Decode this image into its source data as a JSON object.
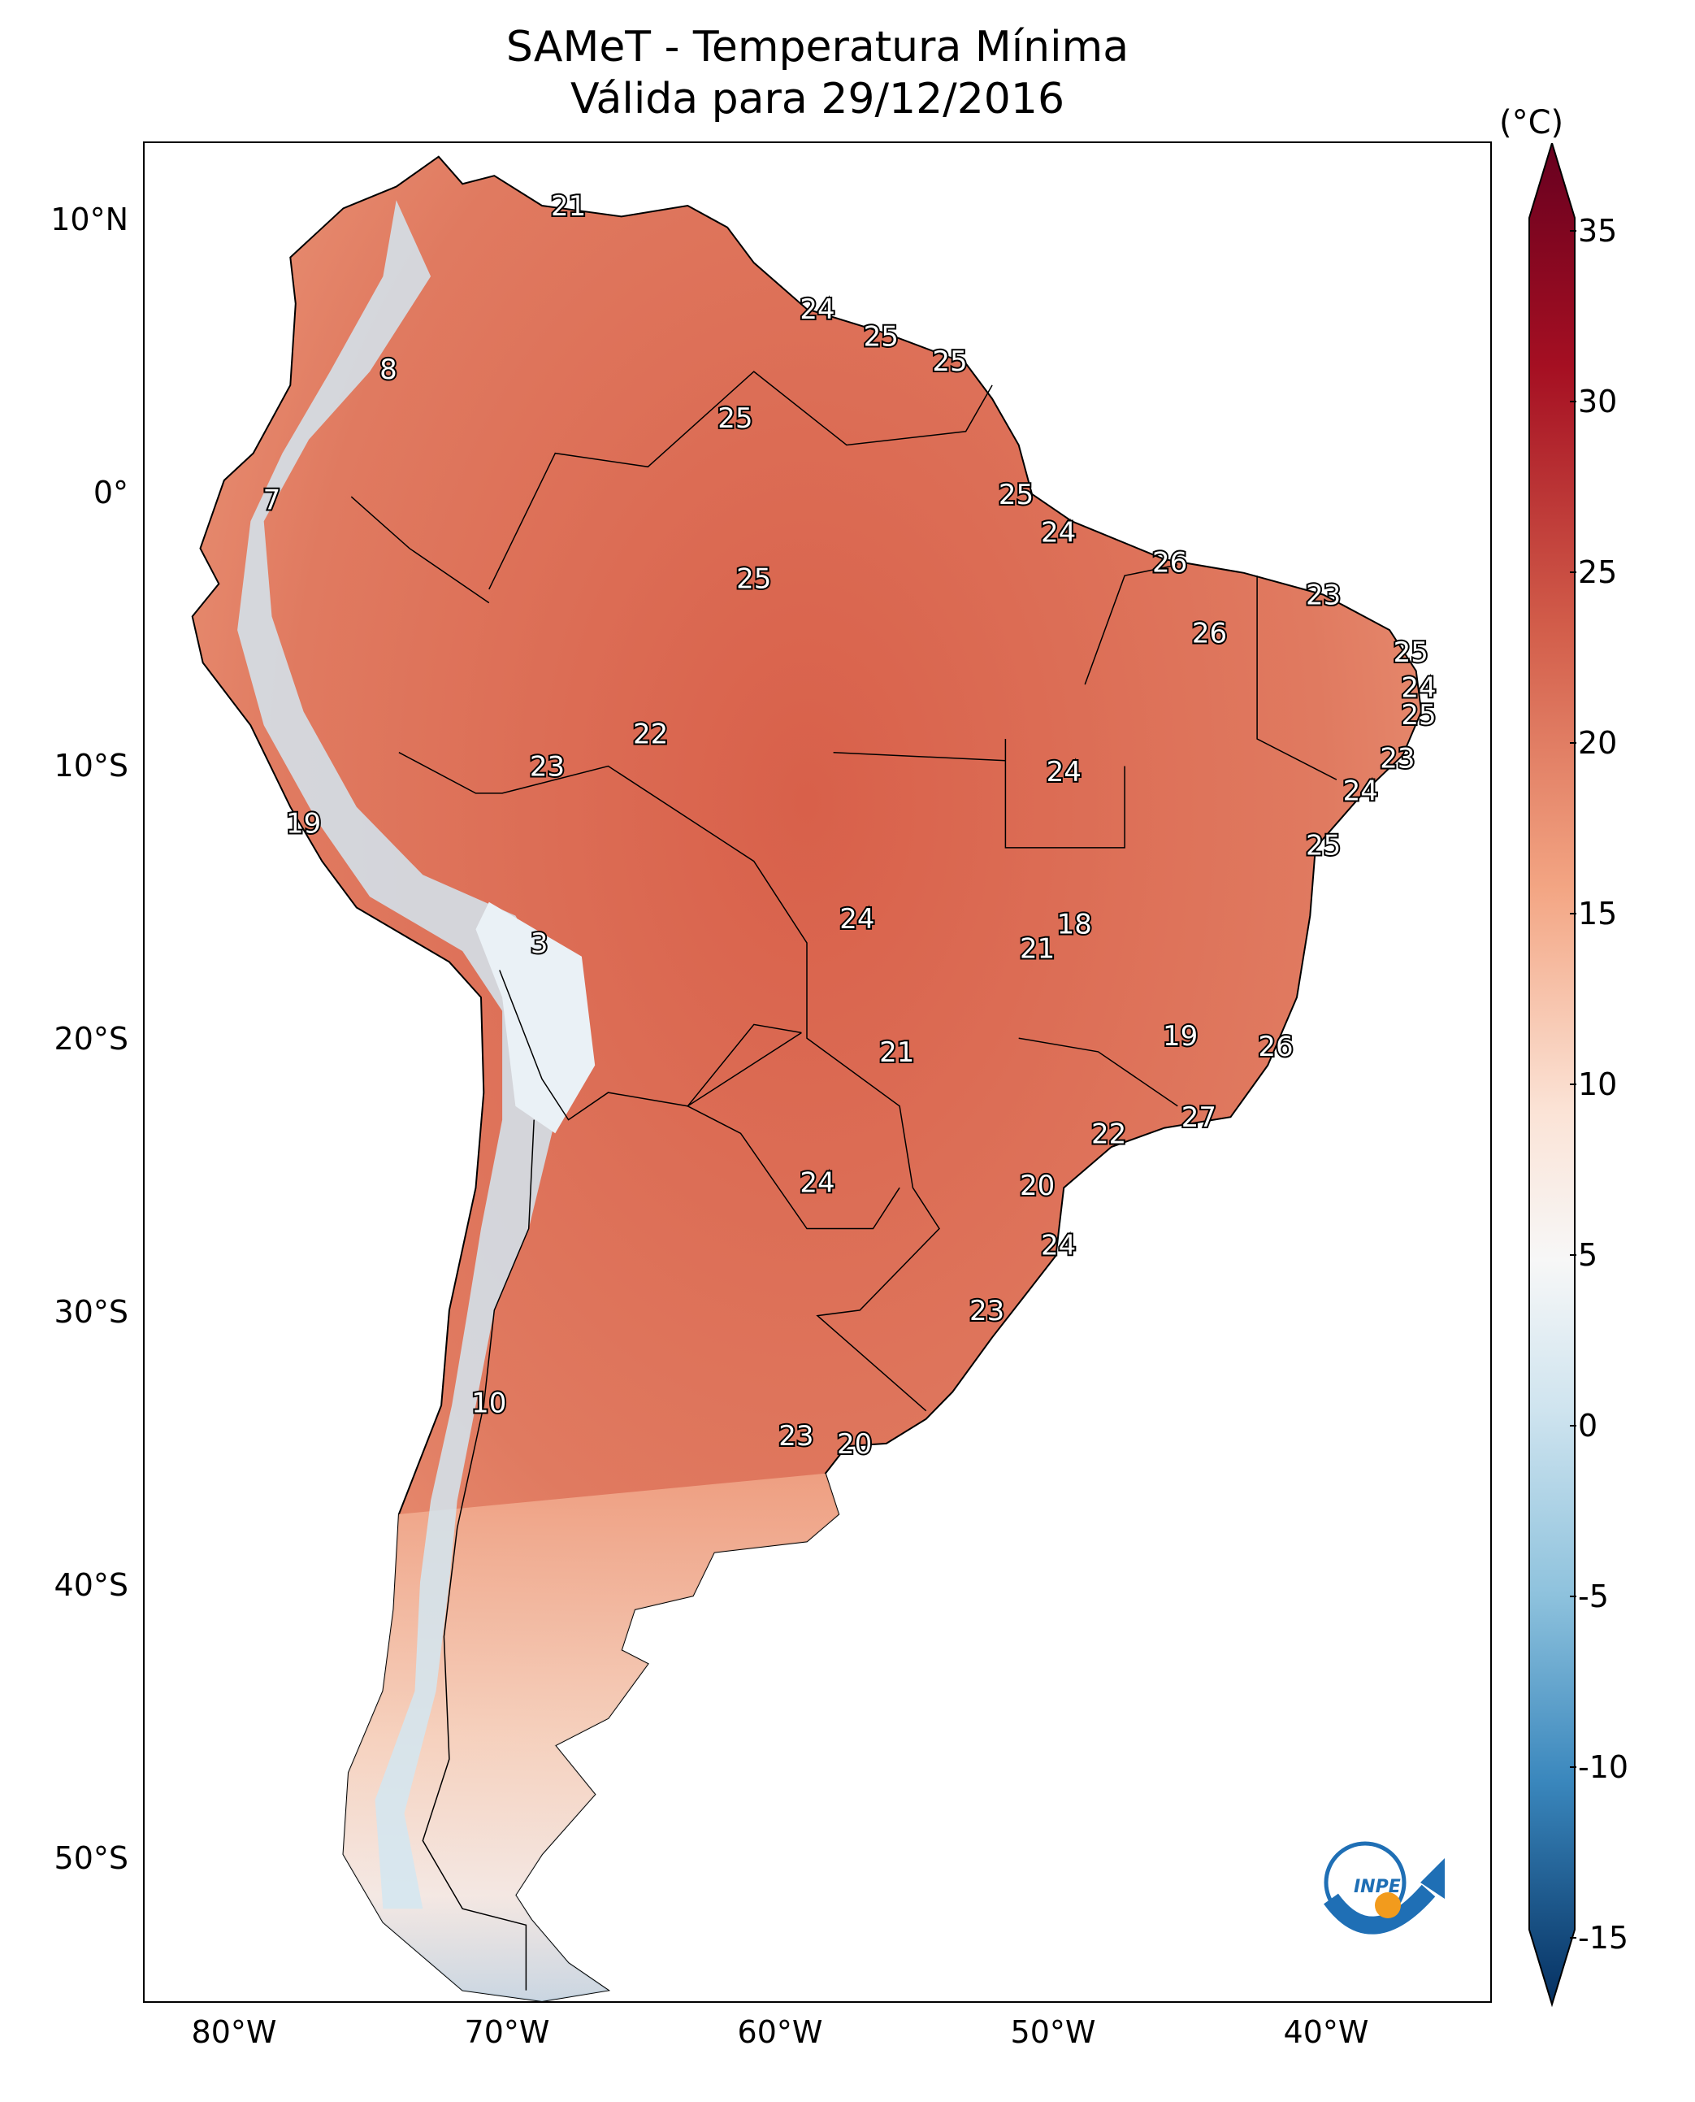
{
  "title_line1": "SAMeT - Temperatura Mínima",
  "title_line2": "Válida para 29/12/2016",
  "colorbar": {
    "unit": "(°C)",
    "ticks": [
      "35",
      "30",
      "25",
      "20",
      "15",
      "10",
      "5",
      "0",
      "-5",
      "-10",
      "-15"
    ],
    "colors": [
      "#6b0019",
      "#b2182b",
      "#d6604d",
      "#f4a582",
      "#fddbc7",
      "#f7f7f7",
      "#d1e5f0",
      "#92c5de",
      "#4393c3",
      "#2166ac",
      "#053061"
    ]
  },
  "axes": {
    "lat_labels": [
      "10°N",
      "0°",
      "10°S",
      "20°S",
      "30°S",
      "40°S",
      "50°S"
    ],
    "lon_labels": [
      "80°W",
      "70°W",
      "60°W",
      "50°W",
      "40°W"
    ]
  },
  "station_values": [
    {
      "label": "21",
      "lon": -67.0,
      "lat": 10.6
    },
    {
      "label": "8",
      "lon": -73.8,
      "lat": 4.6
    },
    {
      "label": "24",
      "lon": -57.6,
      "lat": 6.8
    },
    {
      "label": "25",
      "lon": -55.2,
      "lat": 5.8
    },
    {
      "label": "25",
      "lon": -52.6,
      "lat": 4.9
    },
    {
      "label": "25",
      "lon": -60.7,
      "lat": 2.8
    },
    {
      "label": "7",
      "lon": -78.2,
      "lat": -0.2
    },
    {
      "label": "25",
      "lon": -50.1,
      "lat": 0.0
    },
    {
      "label": "24",
      "lon": -48.5,
      "lat": -1.4
    },
    {
      "label": "26",
      "lon": -44.3,
      "lat": -2.5
    },
    {
      "label": "25",
      "lon": -60.0,
      "lat": -3.1
    },
    {
      "label": "23",
      "lon": -38.5,
      "lat": -3.7
    },
    {
      "label": "26",
      "lon": -42.8,
      "lat": -5.1
    },
    {
      "label": "25",
      "lon": -35.2,
      "lat": -5.8
    },
    {
      "label": "24",
      "lon": -34.9,
      "lat": -7.1
    },
    {
      "label": "25",
      "lon": -34.9,
      "lat": -8.1
    },
    {
      "label": "22",
      "lon": -63.9,
      "lat": -8.8
    },
    {
      "label": "23",
      "lon": -67.8,
      "lat": -10.0
    },
    {
      "label": "23",
      "lon": -35.7,
      "lat": -9.7
    },
    {
      "label": "24",
      "lon": -48.3,
      "lat": -10.2
    },
    {
      "label": "24",
      "lon": -37.1,
      "lat": -10.9
    },
    {
      "label": "19",
      "lon": -77.0,
      "lat": -12.1
    },
    {
      "label": "25",
      "lon": -38.5,
      "lat": -12.9
    },
    {
      "label": "24",
      "lon": -56.1,
      "lat": -15.6
    },
    {
      "label": "18",
      "lon": -47.9,
      "lat": -15.8
    },
    {
      "label": "3",
      "lon": -68.1,
      "lat": -16.5
    },
    {
      "label": "21",
      "lon": -49.3,
      "lat": -16.7
    },
    {
      "label": "19",
      "lon": -43.9,
      "lat": -19.9
    },
    {
      "label": "26",
      "lon": -40.3,
      "lat": -20.3
    },
    {
      "label": "21",
      "lon": -54.6,
      "lat": -20.5
    },
    {
      "label": "27",
      "lon": -43.2,
      "lat": -22.9
    },
    {
      "label": "22",
      "lon": -46.6,
      "lat": -23.5
    },
    {
      "label": "24",
      "lon": -57.6,
      "lat": -25.3
    },
    {
      "label": "20",
      "lon": -49.3,
      "lat": -25.4
    },
    {
      "label": "24",
      "lon": -48.5,
      "lat": -27.6
    },
    {
      "label": "23",
      "lon": -51.2,
      "lat": -30.0
    },
    {
      "label": "10",
      "lon": -70.0,
      "lat": -33.4
    },
    {
      "label": "23",
      "lon": -58.4,
      "lat": -34.6
    },
    {
      "label": "20",
      "lon": -56.2,
      "lat": -34.9
    }
  ],
  "logo": {
    "text": "INPE"
  }
}
